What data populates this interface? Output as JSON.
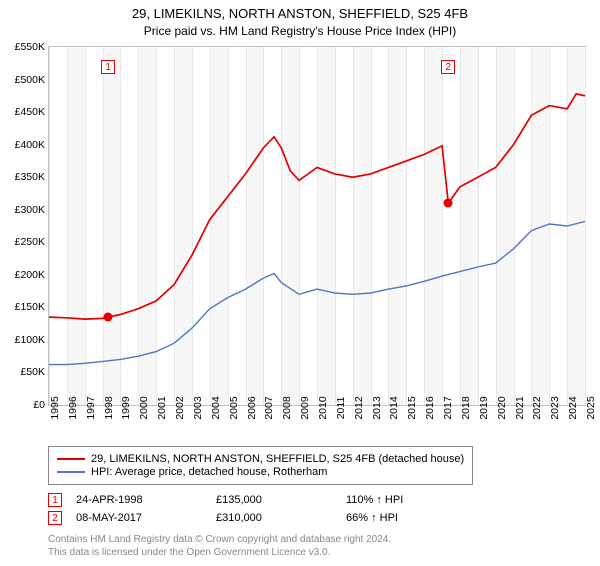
{
  "title": "29, LIMEKILNS, NORTH ANSTON, SHEFFIELD, S25 4FB",
  "subtitle": "Price paid vs. HM Land Registry's House Price Index (HPI)",
  "chart": {
    "type": "line",
    "background_color": "#ffffff",
    "band_color": "#f7f7f7",
    "grid_color": "#e8e8e8",
    "border_color": "#c0c0c0",
    "ylim": [
      0,
      550000
    ],
    "ytick_step": 50000,
    "ytick_labels": [
      "£0",
      "£50K",
      "£100K",
      "£150K",
      "£200K",
      "£250K",
      "£300K",
      "£350K",
      "£400K",
      "£450K",
      "£500K",
      "£550K"
    ],
    "xlim": [
      1995,
      2025
    ],
    "xtick_step": 1,
    "xtick_labels": [
      "1995",
      "1996",
      "1997",
      "1998",
      "1999",
      "2000",
      "2001",
      "2002",
      "2003",
      "2004",
      "2005",
      "2006",
      "2007",
      "2008",
      "2009",
      "2010",
      "2011",
      "2012",
      "2013",
      "2014",
      "2015",
      "2016",
      "2017",
      "2018",
      "2019",
      "2020",
      "2021",
      "2022",
      "2023",
      "2024",
      "2025"
    ],
    "series": [
      {
        "name": "price_paid",
        "label": "29, LIMEKILNS, NORTH ANSTON, SHEFFIELD, S25 4FB (detached house)",
        "color": "#e40000",
        "line_width": 1.7,
        "data": [
          [
            1995,
            135000
          ],
          [
            1996,
            134000
          ],
          [
            1997,
            132000
          ],
          [
            1998,
            133000
          ],
          [
            1998.31,
            135000
          ],
          [
            1999,
            139000
          ],
          [
            2000,
            148000
          ],
          [
            2001,
            160000
          ],
          [
            2002,
            185000
          ],
          [
            2003,
            230000
          ],
          [
            2004,
            285000
          ],
          [
            2005,
            320000
          ],
          [
            2006,
            355000
          ],
          [
            2007,
            395000
          ],
          [
            2007.6,
            412000
          ],
          [
            2008,
            395000
          ],
          [
            2008.5,
            360000
          ],
          [
            2009,
            345000
          ],
          [
            2010,
            365000
          ],
          [
            2011,
            355000
          ],
          [
            2012,
            350000
          ],
          [
            2013,
            355000
          ],
          [
            2014,
            365000
          ],
          [
            2015,
            375000
          ],
          [
            2016,
            385000
          ],
          [
            2017,
            398000
          ],
          [
            2017.35,
            310000
          ],
          [
            2018,
            335000
          ],
          [
            2019,
            350000
          ],
          [
            2020,
            365000
          ],
          [
            2021,
            400000
          ],
          [
            2022,
            445000
          ],
          [
            2023,
            460000
          ],
          [
            2024,
            455000
          ],
          [
            2024.5,
            478000
          ],
          [
            2025,
            475000
          ]
        ]
      },
      {
        "name": "hpi",
        "label": "HPI: Average price, detached house, Rotherham",
        "color": "#4f77c0",
        "line_width": 1.4,
        "data": [
          [
            1995,
            62000
          ],
          [
            1996,
            62000
          ],
          [
            1997,
            64000
          ],
          [
            1998,
            67000
          ],
          [
            1999,
            70000
          ],
          [
            2000,
            75000
          ],
          [
            2001,
            82000
          ],
          [
            2002,
            95000
          ],
          [
            2003,
            118000
          ],
          [
            2004,
            148000
          ],
          [
            2005,
            165000
          ],
          [
            2006,
            178000
          ],
          [
            2007,
            195000
          ],
          [
            2007.6,
            202000
          ],
          [
            2008,
            188000
          ],
          [
            2009,
            170000
          ],
          [
            2010,
            178000
          ],
          [
            2011,
            172000
          ],
          [
            2012,
            170000
          ],
          [
            2013,
            172000
          ],
          [
            2014,
            178000
          ],
          [
            2015,
            183000
          ],
          [
            2016,
            190000
          ],
          [
            2017,
            198000
          ],
          [
            2018,
            205000
          ],
          [
            2019,
            212000
          ],
          [
            2020,
            218000
          ],
          [
            2021,
            240000
          ],
          [
            2022,
            268000
          ],
          [
            2023,
            278000
          ],
          [
            2024,
            275000
          ],
          [
            2025,
            282000
          ]
        ]
      }
    ],
    "markers": [
      {
        "x": 1998.31,
        "y": 135000,
        "color": "#e40000",
        "flag": "1",
        "flag_y": 520000
      },
      {
        "x": 2017.35,
        "y": 310000,
        "color": "#e40000",
        "flag": "2",
        "flag_y": 520000
      }
    ]
  },
  "legend": {
    "items": [
      {
        "color": "#e40000",
        "label": "29, LIMEKILNS, NORTH ANSTON, SHEFFIELD, S25 4FB (detached house)"
      },
      {
        "color": "#4f77c0",
        "label": "HPI: Average price, detached house, Rotherham"
      }
    ]
  },
  "sales": [
    {
      "flag": "1",
      "flag_color": "#e40000",
      "date": "24-APR-1998",
      "price": "£135,000",
      "pct": "110% ↑ HPI"
    },
    {
      "flag": "2",
      "flag_color": "#e40000",
      "date": "08-MAY-2017",
      "price": "£310,000",
      "pct": "66% ↑ HPI"
    }
  ],
  "footnote_line1": "Contains HM Land Registry data © Crown copyright and database right 2024.",
  "footnote_line2": "This data is licensed under the Open Government Licence v3.0.",
  "col_widths": {
    "date": 140,
    "price": 130,
    "pct": 120
  }
}
